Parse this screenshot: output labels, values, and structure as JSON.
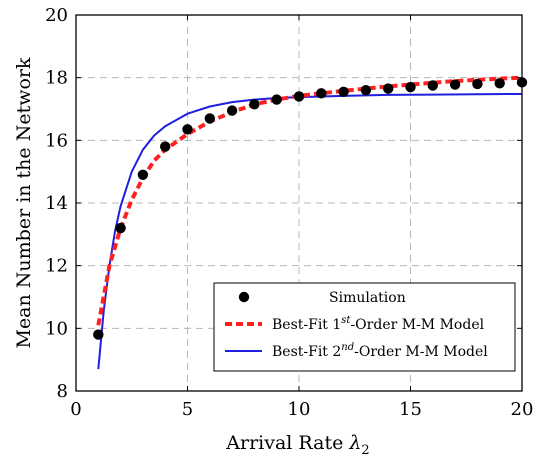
{
  "chart_data": {
    "type": "line",
    "title": "",
    "xlabel": "Arrival Rate",
    "xlabel_symbol": "λ",
    "xlabel_subscript": "2",
    "ylabel": "Mean Number in the Network",
    "xlim": [
      0,
      20
    ],
    "ylim": [
      8,
      20
    ],
    "xticks": [
      0,
      5,
      10,
      15,
      20
    ],
    "yticks": [
      8,
      10,
      12,
      14,
      16,
      18,
      20
    ],
    "xtick_labels": [
      "0",
      "5",
      "10",
      "15",
      "20"
    ],
    "ytick_labels": [
      "8",
      "10",
      "12",
      "14",
      "16",
      "18",
      "20"
    ],
    "grid": true,
    "legend_position": "bottom-right",
    "series": [
      {
        "name": "Simulation",
        "style": "markers",
        "color": "#000000",
        "x": [
          1,
          2,
          3,
          4,
          5,
          6,
          7,
          8,
          9,
          10,
          11,
          12,
          13,
          14,
          15,
          16,
          17,
          18,
          19,
          20
        ],
        "y": [
          9.8,
          13.2,
          14.9,
          15.8,
          16.35,
          16.7,
          16.95,
          17.15,
          17.3,
          17.4,
          17.5,
          17.55,
          17.6,
          17.65,
          17.7,
          17.75,
          17.78,
          17.8,
          17.82,
          17.85
        ]
      },
      {
        "name": "Best-Fit 1st-Order M-M Model",
        "label_parts": [
          "Best-Fit 1",
          "st",
          "-Order M-M Model"
        ],
        "style": "dashed",
        "color": "#ff2020",
        "x": [
          1,
          1.5,
          2,
          2.5,
          3,
          3.5,
          4,
          5,
          6,
          7,
          8,
          9,
          10,
          11,
          12,
          13,
          14,
          15,
          16,
          17,
          18,
          19,
          20
        ],
        "y": [
          10.1,
          12.0,
          13.2,
          14.1,
          14.8,
          15.35,
          15.7,
          16.2,
          16.6,
          16.9,
          17.15,
          17.3,
          17.42,
          17.5,
          17.58,
          17.65,
          17.72,
          17.78,
          17.84,
          17.89,
          17.93,
          17.97,
          18.0
        ]
      },
      {
        "name": "Best-Fit 2nd-Order M-M Model",
        "label_parts": [
          "Best-Fit 2",
          "nd",
          "-Order M-M Model"
        ],
        "style": "solid",
        "color": "#1f1fe0",
        "x": [
          1,
          1.25,
          1.5,
          1.75,
          2,
          2.5,
          3,
          3.5,
          4,
          5,
          6,
          7,
          8,
          9,
          10,
          12,
          14,
          16,
          18,
          20
        ],
        "y": [
          8.7,
          10.6,
          12.0,
          13.1,
          13.9,
          15.0,
          15.7,
          16.15,
          16.45,
          16.85,
          17.08,
          17.22,
          17.3,
          17.35,
          17.38,
          17.42,
          17.45,
          17.46,
          17.47,
          17.48
        ]
      }
    ]
  }
}
